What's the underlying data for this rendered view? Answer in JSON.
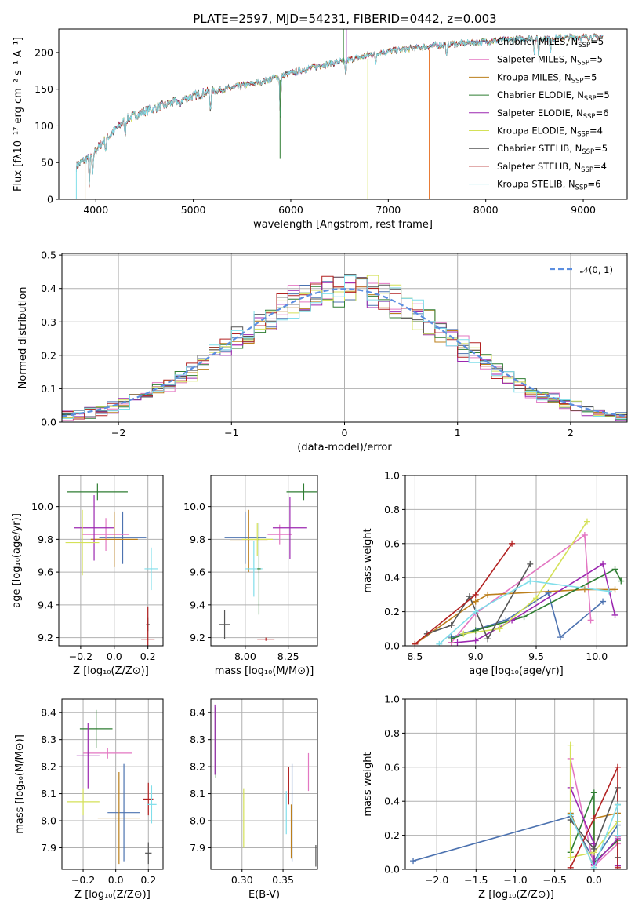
{
  "colors": {
    "Chabrier MILES": "#4c72b0",
    "Salpeter MILES": "#e377c2",
    "Kroupa MILES": "#bc7f1b",
    "Chabrier ELODIE": "#2e7d32",
    "Salpeter ELODIE": "#9c27b0",
    "Kroupa ELODIE": "#d4e157",
    "Chabrier STELIB": "#555555",
    "Salpeter STELIB": "#b22222",
    "Kroupa STELIB": "#80deea",
    "normal": "#5b8ee0",
    "spec_orange": "#e8742a"
  },
  "chart_data": [
    {
      "type": "line",
      "title": "PLATE=2597, MJD=54231, FIBERID=0442, z=0.003",
      "xlabel": "wavelength [Angstrom, rest frame]",
      "ylabel": "Flux [fλ10⁻¹⁷ erg cm⁻² s⁻¹ A⁻¹]",
      "xlim": [
        3620,
        9450
      ],
      "ylim": [
        0,
        232
      ],
      "xticks": [
        "4000",
        "5000",
        "6000",
        "7000",
        "8000",
        "9000"
      ],
      "yticks": [
        "0",
        "50",
        "100",
        "150",
        "200"
      ],
      "continuum": [
        [
          3800,
          45
        ],
        [
          3950,
          60
        ],
        [
          4100,
          82
        ],
        [
          4300,
          108
        ],
        [
          4500,
          120
        ],
        [
          4800,
          132
        ],
        [
          5100,
          145
        ],
        [
          5400,
          152
        ],
        [
          5700,
          160
        ],
        [
          6000,
          172
        ],
        [
          6300,
          182
        ],
        [
          6600,
          190
        ],
        [
          6900,
          200
        ],
        [
          7200,
          205
        ],
        [
          7500,
          210
        ],
        [
          7800,
          213
        ],
        [
          8100,
          216
        ],
        [
          8400,
          219
        ],
        [
          8700,
          220
        ],
        [
          9000,
          221
        ],
        [
          9200,
          221
        ]
      ],
      "absorption": [
        [
          3934,
          38
        ],
        [
          3968,
          32
        ],
        [
          4102,
          15
        ],
        [
          4300,
          20
        ],
        [
          4861,
          15
        ],
        [
          5175,
          25
        ],
        [
          5893,
          55
        ],
        [
          6563,
          20
        ],
        [
          6870,
          15
        ],
        [
          7600,
          18
        ],
        [
          8498,
          18
        ],
        [
          8542,
          22
        ],
        [
          8662,
          20
        ]
      ],
      "spikes": [
        [
          3800,
          0,
          "Kroupa STELIB"
        ],
        [
          3890,
          0,
          "Kroupa MILES"
        ],
        [
          5890,
          55,
          "Chabrier ELODIE"
        ],
        [
          6790,
          0,
          "Kroupa ELODIE"
        ],
        [
          7420,
          0,
          "spec_orange"
        ],
        [
          6540,
          232,
          "Chabrier ELODIE"
        ],
        [
          6570,
          232,
          "Salpeter ELODIE"
        ]
      ],
      "legend_position": "upper-right",
      "legend": [
        {
          "name": "Chabrier MILES",
          "nssp": "=5"
        },
        {
          "name": "Salpeter MILES",
          "nssp": "=5"
        },
        {
          "name": "Kroupa MILES",
          "nssp": "=5"
        },
        {
          "name": "Chabrier ELODIE",
          "nssp": "=5"
        },
        {
          "name": "Salpeter ELODIE",
          "nssp": "=6"
        },
        {
          "name": "Kroupa ELODIE",
          "nssp": "=4"
        },
        {
          "name": "Chabrier STELIB",
          "nssp": "=5"
        },
        {
          "name": "Salpeter STELIB",
          "nssp": "=4"
        },
        {
          "name": "Kroupa STELIB",
          "nssp": "=6"
        }
      ],
      "nssp_label": "N",
      "nssp_sub": "SSP"
    },
    {
      "type": "histogram",
      "xlabel": "(data-model)/error",
      "ylabel": "Normed distribution",
      "xlim": [
        -2.5,
        2.5
      ],
      "ylim": [
        0,
        0.505
      ],
      "xticks": [
        "−2",
        "−1",
        "0",
        "1",
        "2"
      ],
      "yticks": [
        "0.0",
        "0.1",
        "0.2",
        "0.3",
        "0.4",
        "0.5"
      ],
      "bin_width": 0.1,
      "legend": "𝒩(0, 1)",
      "legend_position": "upper-right",
      "grid": true
    },
    {
      "type": "errorbar",
      "xlabel": "Z [log₁₀(Z/Z⊙)]",
      "ylabel": "age  [log₁₀(age/yr)]",
      "xlim": [
        -0.33,
        0.29
      ],
      "ylim": [
        9.15,
        10.19
      ],
      "xticks": [
        "−0.2",
        "0.0",
        "0.2"
      ],
      "yticks": [
        "9.2",
        "9.4",
        "9.6",
        "9.8",
        "10.0"
      ],
      "points": [
        {
          "series": "Chabrier MILES",
          "x": 0.05,
          "y": 9.81,
          "xerr": 0.14,
          "yerr": 0.16
        },
        {
          "series": "Salpeter MILES",
          "x": -0.05,
          "y": 9.83,
          "xerr": 0.14,
          "yerr": 0.1
        },
        {
          "series": "Kroupa MILES",
          "x": 0.0,
          "y": 9.8,
          "xerr": 0.14,
          "yerr": 0.17
        },
        {
          "series": "Chabrier ELODIE",
          "x": -0.1,
          "y": 10.09,
          "xerr": 0.18,
          "yerr": 0.05
        },
        {
          "series": "Salpeter ELODIE",
          "x": -0.12,
          "y": 9.87,
          "xerr": 0.12,
          "yerr": 0.2
        },
        {
          "series": "Kroupa ELODIE",
          "x": -0.19,
          "y": 9.78,
          "xerr": 0.1,
          "yerr": 0.2
        },
        {
          "series": "Chabrier STELIB",
          "x": 0.2,
          "y": 9.28,
          "xerr": 0.01,
          "yerr": 0.04
        },
        {
          "series": "Salpeter STELIB",
          "x": 0.2,
          "y": 9.19,
          "xerr": 0.04,
          "yerr": 0.2
        },
        {
          "series": "Kroupa STELIB",
          "x": 0.22,
          "y": 9.62,
          "xerr": 0.04,
          "yerr": 0.13
        }
      ],
      "grid": true
    },
    {
      "type": "errorbar",
      "xlabel": "mass [log₁₀(M/M⊙)]",
      "ylabel": "",
      "xlim": [
        7.8,
        8.42
      ],
      "ylim": [
        9.15,
        10.19
      ],
      "xticks": [
        "8.00",
        "8.25"
      ],
      "yticks": [
        "9.2",
        "9.4",
        "9.6",
        "9.8",
        "10.0"
      ],
      "points": [
        {
          "series": "Chabrier MILES",
          "x": 8.0,
          "y": 9.81,
          "xerr": 0.12,
          "yerr": 0.16
        },
        {
          "series": "Salpeter MILES",
          "x": 8.2,
          "y": 9.83,
          "xerr": 0.07,
          "yerr": 0.06
        },
        {
          "series": "Kroupa MILES",
          "x": 8.02,
          "y": 9.79,
          "xerr": 0.11,
          "yerr": 0.19
        },
        {
          "series": "Chabrier ELODIE",
          "x": 8.34,
          "y": 10.09,
          "xerr": 0.1,
          "yerr": 0.05
        },
        {
          "series": "Salpeter ELODIE",
          "x": 8.26,
          "y": 9.87,
          "xerr": 0.1,
          "yerr": 0.19
        },
        {
          "series": "Kroupa ELODIE",
          "x": 8.07,
          "y": 9.8,
          "xerr": 0.09,
          "yerr": 0.1
        },
        {
          "series": "Chabrier STELIB",
          "x": 7.88,
          "y": 9.28,
          "xerr": 0.03,
          "yerr": 0.09
        },
        {
          "series": "Salpeter STELIB",
          "x": 8.12,
          "y": 9.19,
          "xerr": 0.05,
          "yerr": 0.01
        },
        {
          "series": "Kroupa STELIB",
          "x": 8.05,
          "y": 9.62,
          "xerr": 0.05,
          "yerr": 0.17
        },
        {
          "series": "Chabrier ELODIE",
          "x": 8.08,
          "y": 9.62,
          "xerr": 0.01,
          "yerr": 0.28
        }
      ],
      "grid": true
    },
    {
      "type": "line",
      "xlabel": "age  [log₁₀(age/yr)]",
      "ylabel": "mass weight",
      "xlim": [
        8.42,
        10.25
      ],
      "ylim": [
        0,
        1.0
      ],
      "xticks": [
        "8.5",
        "9.0",
        "9.5",
        "10.0"
      ],
      "yticks": [
        "0.0",
        "0.2",
        "0.4",
        "0.6",
        "0.8",
        "1.0"
      ],
      "series": [
        {
          "name": "Chabrier MILES",
          "points": [
            [
              8.8,
              0.05
            ],
            [
              9.25,
              0.15
            ],
            [
              9.6,
              0.31
            ],
            [
              9.7,
              0.05
            ],
            [
              10.05,
              0.26
            ]
          ]
        },
        {
          "name": "Salpeter MILES",
          "points": [
            [
              8.8,
              0.02
            ],
            [
              9.0,
              0.19
            ],
            [
              9.9,
              0.65
            ],
            [
              9.95,
              0.15
            ]
          ]
        },
        {
          "name": "Kroupa MILES",
          "points": [
            [
              8.5,
              0.01
            ],
            [
              9.0,
              0.26
            ],
            [
              9.1,
              0.3
            ],
            [
              9.9,
              0.33
            ],
            [
              10.15,
              0.33
            ]
          ]
        },
        {
          "name": "Chabrier ELODIE",
          "points": [
            [
              8.8,
              0.04
            ],
            [
              9.0,
              0.09
            ],
            [
              9.4,
              0.17
            ],
            [
              10.15,
              0.45
            ],
            [
              10.2,
              0.38
            ]
          ]
        },
        {
          "name": "Salpeter ELODIE",
          "points": [
            [
              8.85,
              0.02
            ],
            [
              9.0,
              0.03
            ],
            [
              9.3,
              0.15
            ],
            [
              10.05,
              0.48
            ],
            [
              10.15,
              0.18
            ]
          ]
        },
        {
          "name": "Kroupa ELODIE",
          "points": [
            [
              8.9,
              0.07
            ],
            [
              9.2,
              0.1
            ],
            [
              9.5,
              0.28
            ],
            [
              9.92,
              0.73
            ]
          ]
        },
        {
          "name": "Chabrier STELIB",
          "points": [
            [
              8.6,
              0.07
            ],
            [
              8.8,
              0.12
            ],
            [
              8.95,
              0.29
            ],
            [
              9.1,
              0.04
            ],
            [
              9.45,
              0.48
            ]
          ]
        },
        {
          "name": "Salpeter STELIB",
          "points": [
            [
              8.5,
              0.01
            ],
            [
              9.0,
              0.3
            ],
            [
              9.3,
              0.6
            ]
          ]
        },
        {
          "name": "Kroupa STELIB",
          "points": [
            [
              8.7,
              0.01
            ],
            [
              9.0,
              0.2
            ],
            [
              9.45,
              0.38
            ],
            [
              10.1,
              0.32
            ]
          ]
        }
      ],
      "grid": true
    },
    {
      "type": "errorbar",
      "xlabel": "Z [log₁₀(Z/Z⊙)]",
      "ylabel": "mass [log₁₀(M/M⊙)]",
      "xlim": [
        -0.33,
        0.29
      ],
      "ylim": [
        7.82,
        8.45
      ],
      "xticks": [
        "−0.2",
        "0.0",
        "0.2"
      ],
      "yticks": [
        "7.9",
        "8.0",
        "8.1",
        "8.2",
        "8.3",
        "8.4"
      ],
      "points": [
        {
          "series": "Chabrier MILES",
          "x": 0.05,
          "y": 8.03,
          "xerr": 0.1,
          "yerr": 0.18
        },
        {
          "series": "Salpeter MILES",
          "x": -0.05,
          "y": 8.25,
          "xerr": 0.15,
          "yerr": 0.02
        },
        {
          "series": "Kroupa MILES",
          "x": 0.02,
          "y": 8.01,
          "xerr": 0.13,
          "yerr": 0.17
        },
        {
          "series": "Chabrier ELODIE",
          "x": -0.12,
          "y": 8.34,
          "xerr": 0.1,
          "yerr": 0.07
        },
        {
          "series": "Salpeter ELODIE",
          "x": -0.17,
          "y": 8.24,
          "xerr": 0.07,
          "yerr": 0.12
        },
        {
          "series": "Kroupa ELODIE",
          "x": -0.2,
          "y": 8.07,
          "xerr": 0.1,
          "yerr": 0.05
        },
        {
          "series": "Chabrier STELIB",
          "x": 0.2,
          "y": 7.88,
          "xerr": 0.02,
          "yerr": 0.04
        },
        {
          "series": "Salpeter STELIB",
          "x": 0.2,
          "y": 8.08,
          "xerr": 0.03,
          "yerr": 0.06
        },
        {
          "series": "Kroupa STELIB",
          "x": 0.22,
          "y": 8.06,
          "xerr": 0.03,
          "yerr": 0.07
        }
      ],
      "grid": true
    },
    {
      "type": "errorbar",
      "xlabel": "E(B-V)",
      "ylabel": "",
      "xlim": [
        0.262,
        0.392
      ],
      "ylim": [
        7.82,
        8.45
      ],
      "xticks": [
        "0.30",
        "0.35"
      ],
      "yticks": [
        "7.9",
        "8.0",
        "8.1",
        "8.2",
        "8.3",
        "8.4"
      ],
      "points": [
        {
          "series": "Chabrier MILES",
          "x": 0.361,
          "y": 8.03,
          "xerr": 0,
          "yerr": 0.18
        },
        {
          "series": "Salpeter MILES",
          "x": 0.381,
          "y": 8.18,
          "xerr": 0,
          "yerr": 0.07
        },
        {
          "series": "Kroupa MILES",
          "x": 0.36,
          "y": 7.96,
          "xerr": 0,
          "yerr": 0.1
        },
        {
          "series": "Chabrier ELODIE",
          "x": 0.268,
          "y": 8.29,
          "xerr": 0,
          "yerr": 0.13
        },
        {
          "series": "Salpeter ELODIE",
          "x": 0.267,
          "y": 8.3,
          "xerr": 0,
          "yerr": 0.13
        },
        {
          "series": "Kroupa ELODIE",
          "x": 0.302,
          "y": 8.01,
          "xerr": 0,
          "yerr": 0.11
        },
        {
          "series": "Chabrier STELIB",
          "x": 0.39,
          "y": 7.87,
          "xerr": 0,
          "yerr": 0.04
        },
        {
          "series": "Salpeter STELIB",
          "x": 0.357,
          "y": 8.13,
          "xerr": 0,
          "yerr": 0.07
        },
        {
          "series": "Kroupa STELIB",
          "x": 0.354,
          "y": 8.03,
          "xerr": 0,
          "yerr": 0.08
        }
      ],
      "grid": true
    },
    {
      "type": "line",
      "xlabel": "Z [log₁₀(Z/Z⊙)]",
      "ylabel": "mass weight",
      "xlim": [
        -2.4,
        0.42
      ],
      "ylim": [
        0,
        1.0
      ],
      "xticks": [
        "−2.0",
        "−1.5",
        "−1.0",
        "−0.5",
        "0.0"
      ],
      "yticks": [
        "0.0",
        "0.2",
        "0.4",
        "0.6",
        "0.8",
        "1.0"
      ],
      "series": [
        {
          "name": "Chabrier MILES",
          "points": [
            [
              -2.3,
              0.05
            ],
            [
              -0.3,
              0.31
            ],
            [
              0.0,
              0.05
            ],
            [
              0.3,
              0.26
            ]
          ]
        },
        {
          "name": "Salpeter MILES",
          "points": [
            [
              -0.3,
              0.65
            ],
            [
              0.0,
              0.02
            ],
            [
              0.3,
              0.15
            ],
            [
              0.3,
              0.19
            ]
          ]
        },
        {
          "name": "Kroupa MILES",
          "points": [
            [
              -0.3,
              0.33
            ],
            [
              0.0,
              0.01
            ],
            [
              0.0,
              0.3
            ],
            [
              0.3,
              0.33
            ],
            [
              0.3,
              0.02
            ]
          ]
        },
        {
          "name": "Chabrier ELODIE",
          "points": [
            [
              -0.3,
              0.1
            ],
            [
              0.0,
              0.45
            ],
            [
              0.0,
              0.04
            ],
            [
              0.3,
              0.17
            ],
            [
              0.3,
              0.38
            ]
          ]
        },
        {
          "name": "Salpeter ELODIE",
          "points": [
            [
              -0.3,
              0.48
            ],
            [
              0.0,
              0.15
            ],
            [
              0.0,
              0.03
            ],
            [
              0.3,
              0.18
            ],
            [
              0.3,
              0.02
            ]
          ]
        },
        {
          "name": "Kroupa ELODIE",
          "points": [
            [
              -0.3,
              0.73
            ],
            [
              -0.3,
              0.07
            ],
            [
              0.0,
              0.1
            ],
            [
              0.3,
              0.28
            ]
          ]
        },
        {
          "name": "Chabrier STELIB",
          "points": [
            [
              -0.3,
              0.29
            ],
            [
              0.0,
              0.12
            ],
            [
              0.3,
              0.48
            ],
            [
              0.3,
              0.07
            ]
          ]
        },
        {
          "name": "Salpeter STELIB",
          "points": [
            [
              -0.3,
              0.01
            ],
            [
              0.0,
              0.3
            ],
            [
              0.3,
              0.6
            ],
            [
              0.3,
              0.01
            ]
          ]
        },
        {
          "name": "Kroupa STELIB",
          "points": [
            [
              -0.3,
              0.32
            ],
            [
              0.0,
              0.01
            ],
            [
              0.3,
              0.38
            ],
            [
              0.3,
              0.2
            ]
          ]
        }
      ],
      "grid": true
    }
  ]
}
